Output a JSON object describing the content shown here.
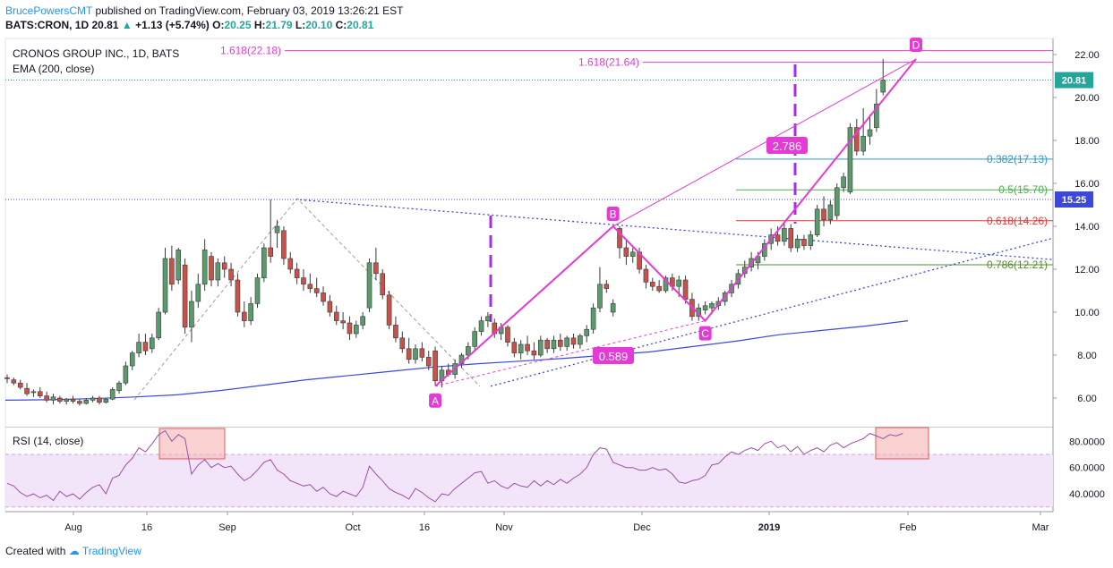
{
  "header": {
    "author": "BrucePowersCMT",
    "published": "published on TradingView.com, February 03, 2019 13:26:21 EST",
    "symbol": "BATS:CRON, 1D",
    "last": "20.81",
    "change": "+1.13 (+5.74%)",
    "open_label": "O:",
    "open": "20.25",
    "high_label": "H:",
    "high": "21.79",
    "low_label": "L:",
    "low": "20.10",
    "close_label": "C:",
    "close": "20.81"
  },
  "footer": {
    "created_with": "Created with",
    "brand": "TradingView"
  },
  "colors": {
    "up": "#26a69a",
    "down": "#ef5350",
    "candle_up": "#5b9a6a",
    "candle_down": "#c8524a",
    "pattern": "#e53ad6",
    "ema": "#3d48d8",
    "rsi": "#9c4fa6",
    "rsi_band": "#f3e5f9",
    "fib_0382": "#2f97c9",
    "fib_05": "#4caf50",
    "fib_0618": "#e53935",
    "fib_0786": "#558b2f"
  },
  "chart_data": [
    {
      "type": "candlestick",
      "title": "CRONOS GROUP INC., 1D, BATS",
      "indicator": "EMA (200, close)",
      "ylim": [
        4.5,
        23.0
      ],
      "yticks": [
        6.0,
        8.0,
        10.0,
        12.0,
        14.0,
        16.0,
        18.0,
        20.0,
        22.0
      ],
      "ytick_labels": [
        "6.00",
        "8.00",
        "10.00",
        "12.00",
        "14.00",
        "16.00",
        "18.00",
        "20.00",
        "22.00"
      ],
      "xticks": [
        "Aug",
        "16",
        "Sep",
        "Oct",
        "16",
        "Nov",
        "Dec",
        "2019",
        "Feb",
        "Mar"
      ],
      "price_badges": [
        {
          "label": "20.81",
          "value": 20.81
        },
        {
          "label": "15.25",
          "value": 15.25
        }
      ],
      "candles": [
        {
          "o": 6.95,
          "h": 7.1,
          "l": 6.7,
          "c": 6.9
        },
        {
          "o": 6.85,
          "h": 6.95,
          "l": 6.6,
          "c": 6.7
        },
        {
          "o": 6.7,
          "h": 6.85,
          "l": 6.4,
          "c": 6.5
        },
        {
          "o": 6.45,
          "h": 6.7,
          "l": 6.1,
          "c": 6.2
        },
        {
          "o": 6.25,
          "h": 6.4,
          "l": 6.05,
          "c": 6.3
        },
        {
          "o": 6.3,
          "h": 6.5,
          "l": 6.0,
          "c": 6.1
        },
        {
          "o": 6.1,
          "h": 6.3,
          "l": 5.8,
          "c": 5.9
        },
        {
          "o": 5.9,
          "h": 6.2,
          "l": 5.7,
          "c": 6.05
        },
        {
          "o": 6.0,
          "h": 6.1,
          "l": 5.75,
          "c": 5.85
        },
        {
          "o": 5.85,
          "h": 6.0,
          "l": 5.7,
          "c": 5.95
        },
        {
          "o": 5.95,
          "h": 6.1,
          "l": 5.75,
          "c": 5.85
        },
        {
          "o": 5.85,
          "h": 5.95,
          "l": 5.65,
          "c": 5.75
        },
        {
          "o": 5.75,
          "h": 6.0,
          "l": 5.7,
          "c": 5.9
        },
        {
          "o": 5.9,
          "h": 6.1,
          "l": 5.8,
          "c": 6.0
        },
        {
          "o": 6.0,
          "h": 6.1,
          "l": 5.7,
          "c": 5.8
        },
        {
          "o": 5.8,
          "h": 6.0,
          "l": 5.75,
          "c": 5.95
        },
        {
          "o": 5.95,
          "h": 6.5,
          "l": 5.9,
          "c": 6.4
        },
        {
          "o": 6.35,
          "h": 6.8,
          "l": 6.2,
          "c": 6.7
        },
        {
          "o": 6.7,
          "h": 7.7,
          "l": 6.6,
          "c": 7.5
        },
        {
          "o": 7.5,
          "h": 8.2,
          "l": 7.3,
          "c": 8.1
        },
        {
          "o": 8.1,
          "h": 9.0,
          "l": 7.9,
          "c": 8.6
        },
        {
          "o": 8.6,
          "h": 9.0,
          "l": 8.0,
          "c": 8.2
        },
        {
          "o": 8.3,
          "h": 9.0,
          "l": 8.1,
          "c": 8.8
        },
        {
          "o": 8.8,
          "h": 10.2,
          "l": 8.7,
          "c": 10.0
        },
        {
          "o": 10.0,
          "h": 13.0,
          "l": 9.9,
          "c": 12.5
        },
        {
          "o": 12.5,
          "h": 13.1,
          "l": 11.0,
          "c": 11.3
        },
        {
          "o": 11.5,
          "h": 13.0,
          "l": 11.3,
          "c": 12.9
        },
        {
          "o": 12.2,
          "h": 12.5,
          "l": 9.0,
          "c": 9.3
        },
        {
          "o": 9.3,
          "h": 11.0,
          "l": 8.6,
          "c": 10.5
        },
        {
          "o": 10.5,
          "h": 11.8,
          "l": 10.2,
          "c": 11.3
        },
        {
          "o": 11.3,
          "h": 13.4,
          "l": 11.0,
          "c": 12.9
        },
        {
          "o": 12.6,
          "h": 12.8,
          "l": 11.2,
          "c": 11.5
        },
        {
          "o": 11.5,
          "h": 12.5,
          "l": 11.2,
          "c": 12.3
        },
        {
          "o": 12.3,
          "h": 12.6,
          "l": 11.6,
          "c": 12.0
        },
        {
          "o": 12.0,
          "h": 12.3,
          "l": 11.2,
          "c": 11.5
        },
        {
          "o": 11.5,
          "h": 11.8,
          "l": 9.8,
          "c": 10.0
        },
        {
          "o": 10.0,
          "h": 10.5,
          "l": 9.3,
          "c": 9.6
        },
        {
          "o": 9.6,
          "h": 10.7,
          "l": 9.4,
          "c": 10.4
        },
        {
          "o": 10.4,
          "h": 11.8,
          "l": 10.2,
          "c": 11.6
        },
        {
          "o": 11.6,
          "h": 13.2,
          "l": 11.4,
          "c": 13.0
        },
        {
          "o": 13.0,
          "h": 15.25,
          "l": 12.3,
          "c": 12.6
        },
        {
          "o": 13.7,
          "h": 14.3,
          "l": 13.0,
          "c": 14.0
        },
        {
          "o": 13.8,
          "h": 14.0,
          "l": 12.2,
          "c": 12.5
        },
        {
          "o": 12.5,
          "h": 12.8,
          "l": 11.8,
          "c": 12.0
        },
        {
          "o": 12.0,
          "h": 12.3,
          "l": 11.3,
          "c": 11.6
        },
        {
          "o": 11.6,
          "h": 12.0,
          "l": 11.0,
          "c": 11.3
        },
        {
          "o": 11.3,
          "h": 11.8,
          "l": 10.9,
          "c": 11.1
        },
        {
          "o": 11.1,
          "h": 11.6,
          "l": 10.7,
          "c": 10.9
        },
        {
          "o": 10.9,
          "h": 11.2,
          "l": 10.3,
          "c": 10.5
        },
        {
          "o": 10.5,
          "h": 10.8,
          "l": 9.8,
          "c": 10.0
        },
        {
          "o": 10.0,
          "h": 10.3,
          "l": 9.4,
          "c": 9.6
        },
        {
          "o": 9.6,
          "h": 10.0,
          "l": 9.2,
          "c": 9.5
        },
        {
          "o": 9.5,
          "h": 9.8,
          "l": 8.7,
          "c": 9.0
        },
        {
          "o": 9.0,
          "h": 9.6,
          "l": 8.8,
          "c": 9.4
        },
        {
          "o": 9.4,
          "h": 10.0,
          "l": 9.2,
          "c": 9.8
        },
        {
          "o": 10.2,
          "h": 12.5,
          "l": 10.0,
          "c": 12.3
        },
        {
          "o": 12.3,
          "h": 13.0,
          "l": 11.5,
          "c": 11.8
        },
        {
          "o": 11.8,
          "h": 12.0,
          "l": 10.6,
          "c": 10.8
        },
        {
          "o": 10.8,
          "h": 11.0,
          "l": 9.2,
          "c": 9.4
        },
        {
          "o": 9.4,
          "h": 9.8,
          "l": 8.6,
          "c": 8.8
        },
        {
          "o": 8.8,
          "h": 9.1,
          "l": 8.1,
          "c": 8.3
        },
        {
          "o": 8.3,
          "h": 8.8,
          "l": 7.6,
          "c": 7.8
        },
        {
          "o": 7.8,
          "h": 8.5,
          "l": 7.6,
          "c": 8.3
        },
        {
          "o": 8.3,
          "h": 8.6,
          "l": 7.7,
          "c": 7.9
        },
        {
          "o": 7.9,
          "h": 8.2,
          "l": 7.3,
          "c": 7.5
        },
        {
          "o": 8.2,
          "h": 8.4,
          "l": 6.6,
          "c": 6.8
        },
        {
          "o": 6.8,
          "h": 7.5,
          "l": 6.5,
          "c": 7.3
        },
        {
          "o": 7.3,
          "h": 7.6,
          "l": 7.0,
          "c": 7.1
        },
        {
          "o": 7.1,
          "h": 7.8,
          "l": 6.9,
          "c": 7.6
        },
        {
          "o": 7.6,
          "h": 8.1,
          "l": 7.4,
          "c": 8.0
        },
        {
          "o": 8.0,
          "h": 8.6,
          "l": 7.8,
          "c": 8.4
        },
        {
          "o": 8.4,
          "h": 9.3,
          "l": 8.2,
          "c": 9.1
        },
        {
          "o": 9.1,
          "h": 9.8,
          "l": 8.9,
          "c": 9.6
        },
        {
          "o": 9.6,
          "h": 10.0,
          "l": 9.3,
          "c": 9.8
        },
        {
          "o": 9.5,
          "h": 9.7,
          "l": 8.8,
          "c": 9.0
        },
        {
          "o": 9.0,
          "h": 9.5,
          "l": 8.7,
          "c": 9.3
        },
        {
          "o": 9.3,
          "h": 9.4,
          "l": 8.4,
          "c": 8.6
        },
        {
          "o": 8.6,
          "h": 8.8,
          "l": 7.9,
          "c": 8.1
        },
        {
          "o": 8.1,
          "h": 8.7,
          "l": 7.8,
          "c": 8.5
        },
        {
          "o": 8.5,
          "h": 8.9,
          "l": 8.0,
          "c": 8.2
        },
        {
          "o": 8.2,
          "h": 8.6,
          "l": 7.8,
          "c": 8.0
        },
        {
          "o": 8.0,
          "h": 8.9,
          "l": 7.9,
          "c": 8.7
        },
        {
          "o": 8.7,
          "h": 8.8,
          "l": 8.1,
          "c": 8.3
        },
        {
          "o": 8.3,
          "h": 8.9,
          "l": 8.1,
          "c": 8.7
        },
        {
          "o": 8.7,
          "h": 9.0,
          "l": 8.2,
          "c": 8.4
        },
        {
          "o": 8.4,
          "h": 8.9,
          "l": 8.2,
          "c": 8.8
        },
        {
          "o": 8.8,
          "h": 9.0,
          "l": 8.3,
          "c": 8.5
        },
        {
          "o": 8.5,
          "h": 9.0,
          "l": 8.3,
          "c": 8.9
        },
        {
          "o": 8.9,
          "h": 9.4,
          "l": 8.6,
          "c": 9.2
        },
        {
          "o": 9.2,
          "h": 10.4,
          "l": 9.0,
          "c": 10.2
        },
        {
          "o": 10.2,
          "h": 12.1,
          "l": 10.0,
          "c": 11.3
        },
        {
          "o": 11.3,
          "h": 11.5,
          "l": 10.9,
          "c": 11.1
        },
        {
          "o": 10.0,
          "h": 10.6,
          "l": 9.8,
          "c": 10.4
        },
        {
          "o": 13.9,
          "h": 14.0,
          "l": 12.5,
          "c": 13.0
        },
        {
          "o": 13.0,
          "h": 13.4,
          "l": 12.2,
          "c": 12.6
        },
        {
          "o": 12.6,
          "h": 13.0,
          "l": 12.3,
          "c": 12.8
        },
        {
          "o": 12.8,
          "h": 13.0,
          "l": 11.8,
          "c": 12.0
        },
        {
          "o": 12.0,
          "h": 12.2,
          "l": 11.1,
          "c": 11.4
        },
        {
          "o": 11.4,
          "h": 11.6,
          "l": 11.0,
          "c": 11.2
        },
        {
          "o": 11.2,
          "h": 11.5,
          "l": 10.9,
          "c": 11.0
        },
        {
          "o": 11.0,
          "h": 11.7,
          "l": 10.9,
          "c": 11.6
        },
        {
          "o": 11.6,
          "h": 11.8,
          "l": 11.0,
          "c": 11.2
        },
        {
          "o": 11.2,
          "h": 11.7,
          "l": 10.7,
          "c": 11.5
        },
        {
          "o": 11.5,
          "h": 11.7,
          "l": 10.4,
          "c": 10.6
        },
        {
          "o": 10.6,
          "h": 10.9,
          "l": 9.6,
          "c": 9.8
        },
        {
          "o": 9.8,
          "h": 10.4,
          "l": 9.6,
          "c": 10.2
        },
        {
          "o": 10.1,
          "h": 10.5,
          "l": 9.9,
          "c": 10.3
        },
        {
          "o": 10.2,
          "h": 10.5,
          "l": 9.9,
          "c": 10.4
        },
        {
          "o": 10.3,
          "h": 10.7,
          "l": 10.1,
          "c": 10.5
        },
        {
          "o": 10.5,
          "h": 11.0,
          "l": 10.3,
          "c": 10.9
        },
        {
          "o": 10.9,
          "h": 11.5,
          "l": 10.7,
          "c": 11.3
        },
        {
          "o": 11.3,
          "h": 12.0,
          "l": 11.1,
          "c": 11.8
        },
        {
          "o": 11.8,
          "h": 12.4,
          "l": 11.6,
          "c": 12.1
        },
        {
          "o": 12.1,
          "h": 12.8,
          "l": 11.9,
          "c": 12.5
        },
        {
          "o": 12.3,
          "h": 12.8,
          "l": 12.0,
          "c": 12.6
        },
        {
          "o": 12.6,
          "h": 13.4,
          "l": 12.4,
          "c": 13.2
        },
        {
          "o": 13.2,
          "h": 13.9,
          "l": 12.9,
          "c": 13.6
        },
        {
          "o": 13.6,
          "h": 14.0,
          "l": 13.1,
          "c": 13.3
        },
        {
          "o": 13.3,
          "h": 14.2,
          "l": 13.1,
          "c": 13.9
        },
        {
          "o": 13.9,
          "h": 14.1,
          "l": 12.8,
          "c": 13.0
        },
        {
          "o": 13.0,
          "h": 13.6,
          "l": 12.8,
          "c": 13.4
        },
        {
          "o": 13.4,
          "h": 13.6,
          "l": 12.9,
          "c": 13.1
        },
        {
          "o": 13.1,
          "h": 13.8,
          "l": 12.9,
          "c": 13.6
        },
        {
          "o": 13.6,
          "h": 15.0,
          "l": 13.5,
          "c": 14.8
        },
        {
          "o": 14.8,
          "h": 15.4,
          "l": 14.0,
          "c": 14.3
        },
        {
          "o": 14.3,
          "h": 15.2,
          "l": 14.1,
          "c": 15.0
        },
        {
          "o": 14.5,
          "h": 16.0,
          "l": 14.3,
          "c": 15.8
        },
        {
          "o": 15.8,
          "h": 16.5,
          "l": 15.6,
          "c": 16.3
        },
        {
          "o": 15.6,
          "h": 18.8,
          "l": 15.5,
          "c": 18.6
        },
        {
          "o": 18.6,
          "h": 19.0,
          "l": 17.3,
          "c": 17.5
        },
        {
          "o": 17.5,
          "h": 19.5,
          "l": 17.3,
          "c": 18.2
        },
        {
          "o": 18.2,
          "h": 19.2,
          "l": 17.8,
          "c": 18.5
        },
        {
          "o": 18.6,
          "h": 20.4,
          "l": 18.4,
          "c": 19.7
        },
        {
          "o": 20.25,
          "h": 21.79,
          "l": 20.1,
          "c": 20.81
        }
      ],
      "ema": [
        5.9,
        5.92,
        5.97,
        6.05,
        6.15,
        6.35,
        6.6,
        6.85,
        7.05,
        7.25,
        7.45,
        7.6,
        7.72,
        7.85,
        8.0,
        8.15,
        8.4,
        8.65,
        8.95,
        9.15,
        9.35,
        9.6
      ],
      "fib_levels": [
        {
          "label": "1.618(22.18)",
          "value": 22.18
        },
        {
          "label": "1.618(21.64)",
          "value": 21.64
        },
        {
          "label": "0.382(17.13)",
          "value": 17.13
        },
        {
          "label": "0.5(15.70)",
          "value": 15.7
        },
        {
          "label": "0.618(14.26)",
          "value": 14.26
        },
        {
          "label": "0.786(12.21)",
          "value": 12.21
        }
      ],
      "pattern_points": [
        {
          "label": "A",
          "bar": 65,
          "value": 6.55
        },
        {
          "label": "B",
          "bar": 92,
          "value": 14.0
        },
        {
          "label": "C",
          "bar": 106,
          "value": 9.6
        },
        {
          "label": "D",
          "bar": 138,
          "value": 21.79
        }
      ],
      "ratios": [
        "0.589",
        "2.786"
      ]
    },
    {
      "type": "line",
      "title": "RSI (14, close)",
      "ylim": [
        30,
        90
      ],
      "yticks": [
        40,
        60,
        80
      ],
      "ytick_labels": [
        "40.0000",
        "60.0000",
        "80.0000"
      ],
      "band": [
        30,
        70
      ],
      "values": [
        48,
        46,
        41,
        38,
        40,
        37,
        39,
        35,
        42,
        38,
        40,
        36,
        41,
        45,
        47,
        40,
        52,
        54,
        62,
        67,
        75,
        72,
        78,
        85,
        88,
        80,
        85,
        82,
        55,
        62,
        66,
        60,
        63,
        60,
        61,
        55,
        50,
        53,
        58,
        64,
        66,
        58,
        55,
        50,
        48,
        46,
        47,
        42,
        45,
        40,
        38,
        42,
        40,
        38,
        45,
        61,
        55,
        50,
        44,
        41,
        39,
        36,
        44,
        41,
        37,
        34,
        40,
        39,
        44,
        48,
        52,
        56,
        57,
        48,
        50,
        46,
        44,
        48,
        46,
        45,
        50,
        46,
        50,
        47,
        51,
        48,
        52,
        55,
        60,
        70,
        75,
        74,
        64,
        62,
        60,
        60,
        58,
        58,
        60,
        58,
        59,
        55,
        49,
        48,
        50,
        51,
        54,
        62,
        63,
        68,
        72,
        70,
        73,
        75,
        73,
        78,
        80,
        75,
        77,
        72,
        76,
        70,
        73,
        75,
        72,
        77,
        79,
        75,
        78,
        80,
        82,
        86,
        84,
        82,
        85,
        84,
        86
      ]
    }
  ]
}
